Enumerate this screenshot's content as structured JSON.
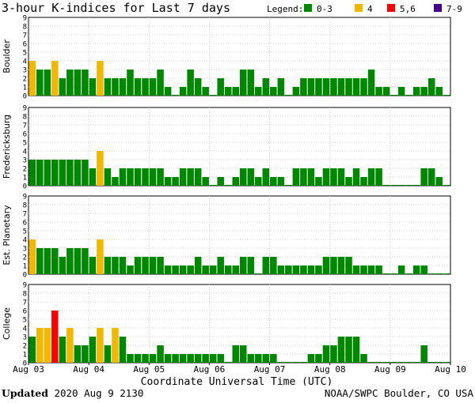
{
  "footer": {
    "updated_label": "Updated",
    "updated_value": "2020 Aug  9 2130",
    "credit": "NOAA/SWPC Boulder, CO USA"
  },
  "chart_data": {
    "type": "bar",
    "title": "3-hour K-indices for Last 7 days",
    "xlabel": "Coordinate Universal Time (UTC)",
    "x_tick_labels": [
      "Aug 03",
      "Aug 04",
      "Aug 05",
      "Aug 06",
      "Aug 07",
      "Aug 08",
      "Aug 09",
      "Aug 10"
    ],
    "ylim": [
      0,
      9
    ],
    "y_ticks": [
      0,
      1,
      2,
      3,
      4,
      5,
      6,
      7,
      8,
      9
    ],
    "grid": true,
    "legend": {
      "title": "Legend:",
      "placement": "top-right",
      "items": [
        {
          "label": "0-3",
          "color": "#008800"
        },
        {
          "label": "4",
          "color": "#f0b800"
        },
        {
          "label": "5,6",
          "color": "#ff0000"
        },
        {
          "label": "7-9",
          "color": "#440088"
        }
      ]
    },
    "series": [
      {
        "name": "Boulder",
        "values": [
          4,
          3,
          3,
          4,
          2,
          3,
          3,
          3,
          2,
          4,
          2,
          2,
          2,
          3,
          2,
          2,
          2,
          3,
          1,
          0,
          1,
          3,
          2,
          1,
          0,
          2,
          1,
          1,
          3,
          3,
          1,
          2,
          1,
          2,
          0,
          1,
          2,
          2,
          2,
          2,
          2,
          2,
          2,
          2,
          2,
          3,
          1,
          1,
          0,
          1,
          0,
          1,
          1,
          2,
          1,
          0
        ]
      },
      {
        "name": "Fredericksburg",
        "values": [
          3,
          3,
          3,
          3,
          3,
          3,
          3,
          3,
          2,
          4,
          2,
          1,
          2,
          2,
          2,
          2,
          2,
          2,
          1,
          1,
          2,
          2,
          2,
          1,
          0,
          1,
          0,
          1,
          2,
          2,
          1,
          2,
          1,
          1,
          0,
          2,
          2,
          2,
          1,
          2,
          2,
          2,
          1,
          2,
          1,
          2,
          2,
          0,
          0,
          0,
          0,
          0,
          2,
          2,
          1,
          0
        ]
      },
      {
        "name": "Est. Planetary",
        "values": [
          4,
          3,
          3,
          3,
          2,
          3,
          3,
          3,
          2,
          4,
          2,
          2,
          2,
          1,
          2,
          2,
          2,
          2,
          1,
          1,
          1,
          1,
          2,
          1,
          1,
          2,
          1,
          1,
          2,
          2,
          0,
          2,
          2,
          1,
          1,
          1,
          1,
          1,
          1,
          2,
          2,
          2,
          2,
          1,
          1,
          1,
          1,
          0,
          0,
          1,
          0,
          1,
          1,
          0,
          0,
          0
        ]
      },
      {
        "name": "College",
        "values": [
          3,
          4,
          4,
          6,
          3,
          4,
          2,
          2,
          3,
          4,
          2,
          4,
          3,
          1,
          1,
          1,
          1,
          2,
          1,
          1,
          1,
          1,
          1,
          1,
          1,
          1,
          0,
          2,
          2,
          1,
          1,
          1,
          1,
          0,
          0,
          0,
          0,
          1,
          1,
          2,
          2,
          3,
          3,
          3,
          1,
          0,
          0,
          0,
          0,
          0,
          0,
          0,
          2,
          0,
          0,
          0
        ]
      }
    ]
  }
}
